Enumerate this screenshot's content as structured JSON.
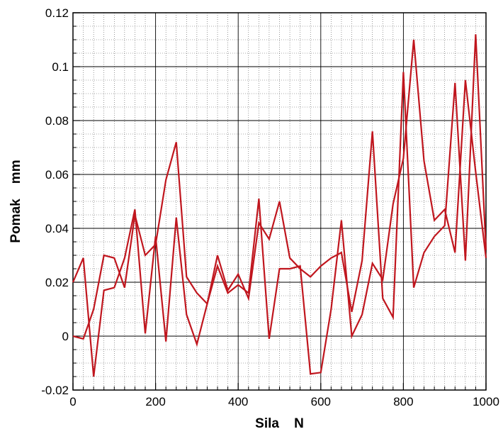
{
  "chart_data": {
    "type": "line",
    "xlabel": "Sila    N",
    "ylabel": "Pomak    mm",
    "xlim": [
      0,
      1000
    ],
    "ylim": [
      -0.02,
      0.12
    ],
    "x_ticks": [
      0,
      200,
      400,
      600,
      800,
      1000
    ],
    "x_tick_labels": [
      "0",
      "200",
      "400",
      "600",
      "800",
      "1000"
    ],
    "y_ticks": [
      -0.02,
      0,
      0.02,
      0.04,
      0.06,
      0.08,
      0.1,
      0.12
    ],
    "y_tick_labels": [
      "-0.02",
      "0",
      "0.02",
      "0.04",
      "0.06",
      "0.08",
      "0.1",
      "0.12"
    ],
    "grid": true,
    "line_color": "#c0161e",
    "series": [
      {
        "color": "#c0161e",
        "x": [
          0,
          25,
          50,
          75,
          100,
          125,
          150,
          175,
          200,
          225,
          250,
          275,
          300,
          325,
          350,
          375,
          400,
          425,
          450,
          475,
          500,
          525,
          550,
          575,
          600,
          625,
          650,
          675,
          700,
          725,
          750,
          775,
          800,
          825,
          850,
          875,
          900,
          925,
          950,
          975,
          1000
        ],
        "y": [
          0.02,
          0.029,
          -0.015,
          0.017,
          0.018,
          0.029,
          0.047,
          0.001,
          0.037,
          -0.002,
          0.044,
          0.008,
          -0.003,
          0.012,
          0.026,
          0.016,
          0.019,
          0.016,
          0.051,
          -0.001,
          0.025,
          0.025,
          0.026,
          -0.014,
          -0.0135,
          0.01,
          0.043,
          0.0,
          0.008,
          0.027,
          0.021,
          0.049,
          0.066,
          0.11,
          0.065,
          0.043,
          0.047,
          0.031,
          0.095,
          0.061,
          0.029
        ]
      },
      {
        "color": "#c0161e",
        "x": [
          0,
          25,
          50,
          75,
          100,
          125,
          150,
          175,
          200,
          225,
          250,
          275,
          300,
          325,
          350,
          375,
          400,
          425,
          450,
          475,
          500,
          525,
          550,
          575,
          600,
          625,
          650,
          675,
          700,
          725,
          750,
          775,
          800,
          825,
          850,
          875,
          900,
          925,
          950,
          975,
          1000
        ],
        "y": [
          0.0,
          -0.001,
          0.01,
          0.03,
          0.029,
          0.018,
          0.045,
          0.03,
          0.034,
          0.058,
          0.072,
          0.022,
          0.016,
          0.012,
          0.03,
          0.017,
          0.023,
          0.014,
          0.042,
          0.036,
          0.05,
          0.029,
          0.025,
          0.022,
          0.026,
          0.029,
          0.031,
          0.009,
          0.028,
          0.076,
          0.014,
          0.007,
          0.098,
          0.018,
          0.031,
          0.037,
          0.041,
          0.094,
          0.028,
          0.112,
          0.032
        ]
      }
    ]
  }
}
